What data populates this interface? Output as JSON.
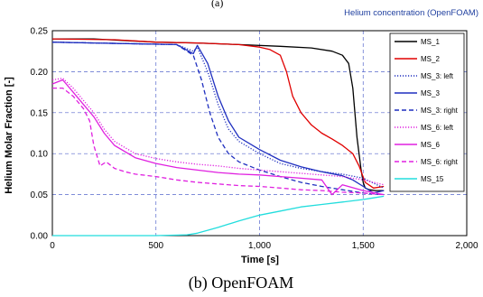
{
  "header_fragment": "(a)",
  "chart_data": {
    "type": "line",
    "title": "Helium concentration (OpenFOAM)",
    "caption": "(b) OpenFOAM",
    "xlabel": "Time [s]",
    "ylabel": "Helium Molar Fraction [-]",
    "xlim": [
      0,
      2000
    ],
    "ylim": [
      0,
      0.25
    ],
    "xticks": [
      0,
      500,
      1000,
      1500,
      2000
    ],
    "xtick_labels": [
      "0",
      "500",
      "1,000",
      "1,500",
      "2,000"
    ],
    "yticks": [
      0,
      0.05,
      0.1,
      0.15,
      0.2,
      0.25
    ],
    "ytick_labels": [
      "0.00",
      "0.05",
      "0.10",
      "0.15",
      "0.20",
      "0.25"
    ],
    "grid": true,
    "legend_position": "top-right",
    "series": [
      {
        "name": "MS_1",
        "color": "#000000",
        "dash": "solid",
        "x": [
          0,
          200,
          500,
          700,
          900,
          1100,
          1250,
          1350,
          1400,
          1430,
          1450,
          1460,
          1470,
          1480,
          1490,
          1500,
          1510,
          1530,
          1560,
          1600
        ],
        "y": [
          0.24,
          0.24,
          0.236,
          0.235,
          0.233,
          0.231,
          0.229,
          0.225,
          0.22,
          0.21,
          0.18,
          0.15,
          0.12,
          0.1,
          0.08,
          0.065,
          0.058,
          0.056,
          0.055,
          0.055
        ]
      },
      {
        "name": "MS_2",
        "color": "#e00000",
        "dash": "solid",
        "x": [
          0,
          300,
          500,
          700,
          900,
          1000,
          1050,
          1100,
          1130,
          1160,
          1200,
          1250,
          1300,
          1350,
          1400,
          1450,
          1480,
          1510,
          1550,
          1600
        ],
        "y": [
          0.24,
          0.239,
          0.236,
          0.235,
          0.233,
          0.23,
          0.227,
          0.22,
          0.2,
          0.17,
          0.15,
          0.135,
          0.125,
          0.118,
          0.11,
          0.1,
          0.085,
          0.065,
          0.058,
          0.06
        ]
      },
      {
        "name": "MS_3: left",
        "color": "#1f2fbf",
        "dash": "dotted",
        "x": [
          0,
          200,
          600,
          680,
          700,
          750,
          800,
          850,
          900,
          1000,
          1100,
          1200,
          1300,
          1400,
          1500,
          1550,
          1600
        ],
        "y": [
          0.236,
          0.235,
          0.233,
          0.225,
          0.23,
          0.2,
          0.16,
          0.13,
          0.115,
          0.1,
          0.088,
          0.082,
          0.078,
          0.075,
          0.07,
          0.064,
          0.058
        ]
      },
      {
        "name": "MS_3",
        "color": "#1f2fbf",
        "dash": "solid",
        "x": [
          0,
          200,
          600,
          680,
          700,
          750,
          800,
          850,
          900,
          1000,
          1100,
          1200,
          1300,
          1400,
          1450,
          1500,
          1550,
          1600
        ],
        "y": [
          0.236,
          0.235,
          0.233,
          0.222,
          0.232,
          0.21,
          0.17,
          0.14,
          0.12,
          0.105,
          0.092,
          0.084,
          0.078,
          0.073,
          0.068,
          0.06,
          0.052,
          0.055
        ]
      },
      {
        "name": "MS_3: right",
        "color": "#1f2fbf",
        "dash": "dashed",
        "x": [
          0,
          200,
          600,
          680,
          720,
          760,
          800,
          850,
          900,
          1000,
          1100,
          1200,
          1300,
          1400,
          1500,
          1600
        ],
        "y": [
          0.236,
          0.235,
          0.233,
          0.22,
          0.19,
          0.15,
          0.12,
          0.1,
          0.09,
          0.08,
          0.072,
          0.065,
          0.06,
          0.056,
          0.052,
          0.05
        ]
      },
      {
        "name": "MS_6: left",
        "color": "#e020e0",
        "dash": "dotted",
        "x": [
          0,
          50,
          100,
          150,
          200,
          250,
          300,
          400,
          500,
          600,
          700,
          800,
          900,
          1000,
          1100,
          1200,
          1300,
          1400,
          1500,
          1600
        ],
        "y": [
          0.19,
          0.192,
          0.18,
          0.165,
          0.15,
          0.13,
          0.115,
          0.1,
          0.094,
          0.09,
          0.087,
          0.085,
          0.082,
          0.08,
          0.078,
          0.076,
          0.074,
          0.072,
          0.068,
          0.062
        ]
      },
      {
        "name": "MS_6",
        "color": "#e020e0",
        "dash": "solid",
        "x": [
          0,
          50,
          100,
          150,
          200,
          250,
          300,
          400,
          500,
          600,
          700,
          800,
          900,
          1000,
          1100,
          1200,
          1300,
          1350,
          1400,
          1500,
          1600
        ],
        "y": [
          0.185,
          0.19,
          0.175,
          0.16,
          0.145,
          0.125,
          0.11,
          0.095,
          0.088,
          0.083,
          0.08,
          0.077,
          0.075,
          0.074,
          0.072,
          0.07,
          0.068,
          0.05,
          0.062,
          0.055,
          0.05
        ]
      },
      {
        "name": "MS_6: right",
        "color": "#e020e0",
        "dash": "dashed",
        "x": [
          0,
          50,
          100,
          150,
          180,
          200,
          230,
          260,
          300,
          350,
          400,
          500,
          600,
          700,
          800,
          900,
          1000,
          1100,
          1200,
          1300,
          1400,
          1500,
          1600
        ],
        "y": [
          0.18,
          0.18,
          0.17,
          0.155,
          0.14,
          0.11,
          0.085,
          0.09,
          0.082,
          0.078,
          0.075,
          0.072,
          0.068,
          0.065,
          0.063,
          0.061,
          0.06,
          0.058,
          0.056,
          0.055,
          0.053,
          0.052,
          0.05
        ]
      },
      {
        "name": "MS_15",
        "color": "#22dddd",
        "dash": "solid",
        "x": [
          0,
          300,
          500,
          650,
          700,
          800,
          900,
          1000,
          1100,
          1200,
          1300,
          1400,
          1500,
          1550,
          1600
        ],
        "y": [
          0.0,
          0.0,
          0.0,
          0.001,
          0.003,
          0.01,
          0.018,
          0.025,
          0.03,
          0.035,
          0.038,
          0.041,
          0.044,
          0.046,
          0.048
        ]
      }
    ]
  }
}
